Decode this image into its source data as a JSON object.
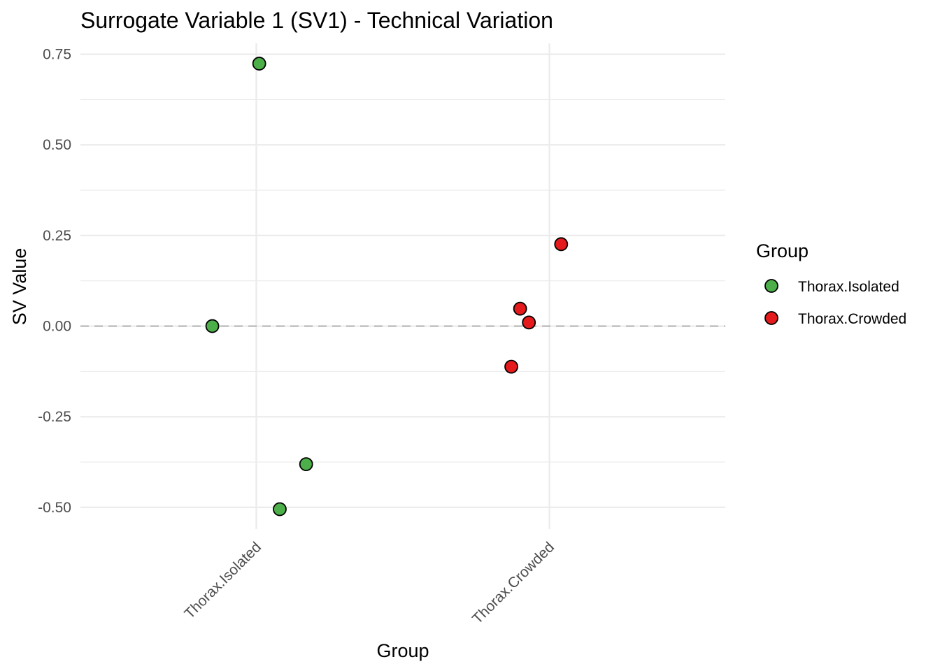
{
  "chart_data": {
    "type": "scatter",
    "title": "Surrogate Variable 1 (SV1) - Technical Variation",
    "xlabel": "Group",
    "ylabel": "SV Value",
    "categories": [
      "Thorax.Isolated",
      "Thorax.Crowded"
    ],
    "y_ticks": [
      "-0.50",
      "-0.25",
      "0.00",
      "0.25",
      "0.50",
      "0.75"
    ],
    "y_tick_values": [
      -0.5,
      -0.25,
      0.0,
      0.25,
      0.5,
      0.75
    ],
    "ylim": [
      -0.56,
      0.78
    ],
    "reference_line": {
      "y": 0,
      "style": "dashed",
      "color": "#b3b3b3"
    },
    "grid": true,
    "legend": {
      "title": "Group",
      "position": "right",
      "entries": [
        "Thorax.Isolated",
        "Thorax.Crowded"
      ]
    },
    "colors": {
      "Thorax.Isolated": "#4daf4a",
      "Thorax.Crowded": "#e41a1c"
    },
    "series": [
      {
        "name": "Thorax.Isolated",
        "points": [
          {
            "category": "Thorax.Isolated",
            "jitter": 0.01,
            "y": 0.724
          },
          {
            "category": "Thorax.Isolated",
            "jitter": -0.15,
            "y": 0.0
          },
          {
            "category": "Thorax.Isolated",
            "jitter": 0.17,
            "y": -0.381
          },
          {
            "category": "Thorax.Isolated",
            "jitter": 0.08,
            "y": -0.505
          }
        ]
      },
      {
        "name": "Thorax.Crowded",
        "points": [
          {
            "category": "Thorax.Crowded",
            "jitter": 0.04,
            "y": 0.226
          },
          {
            "category": "Thorax.Crowded",
            "jitter": -0.1,
            "y": 0.048
          },
          {
            "category": "Thorax.Crowded",
            "jitter": -0.07,
            "y": 0.01
          },
          {
            "category": "Thorax.Crowded",
            "jitter": -0.13,
            "y": -0.112
          }
        ]
      }
    ]
  }
}
